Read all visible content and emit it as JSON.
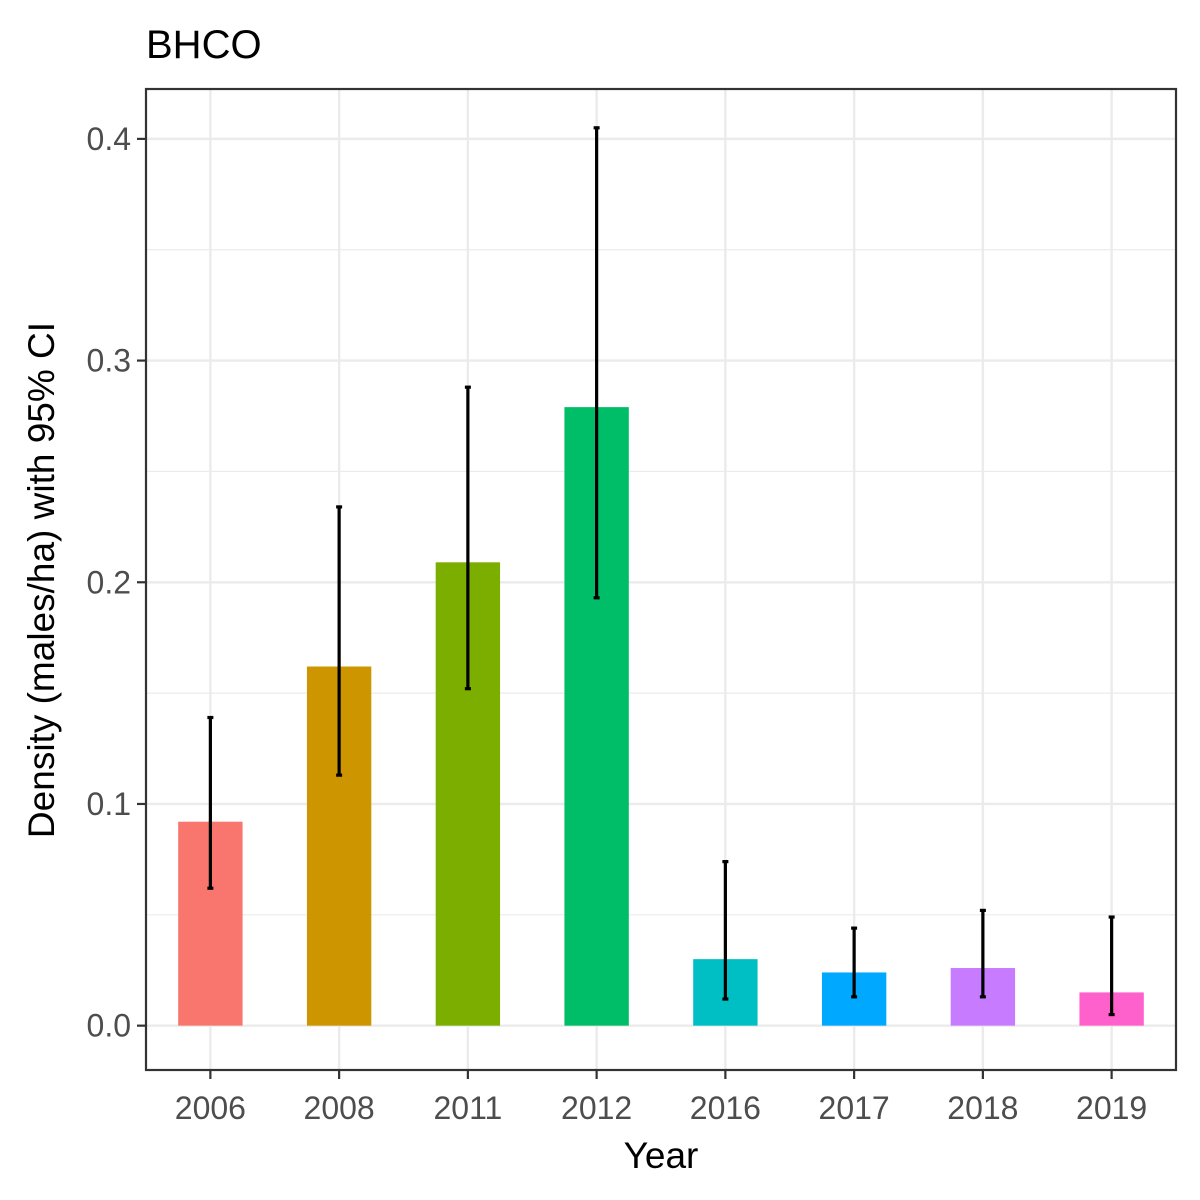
{
  "chart_data": {
    "type": "bar",
    "title": "BHCO",
    "xlabel": "Year",
    "ylabel": "Density (males/ha) with 95% CI",
    "categories": [
      "2006",
      "2008",
      "2011",
      "2012",
      "2016",
      "2017",
      "2018",
      "2019"
    ],
    "values": [
      0.092,
      0.162,
      0.209,
      0.279,
      0.03,
      0.024,
      0.026,
      0.015
    ],
    "ci_lower": [
      0.062,
      0.113,
      0.152,
      0.193,
      0.012,
      0.013,
      0.013,
      0.005
    ],
    "ci_upper": [
      0.139,
      0.234,
      0.288,
      0.405,
      0.074,
      0.044,
      0.052,
      0.049
    ],
    "bar_colors": [
      "#F8766D",
      "#CD9600",
      "#7CAE00",
      "#00BE67",
      "#00BFC4",
      "#00A9FF",
      "#C77CFF",
      "#FF61CC"
    ],
    "ylim": [
      -0.02,
      0.4225
    ],
    "y_ticks": [
      0.0,
      0.1,
      0.2,
      0.3,
      0.4
    ],
    "y_tick_labels": [
      "0.0",
      "0.1",
      "0.2",
      "0.3",
      "0.4"
    ],
    "grid": true,
    "legend": "none"
  }
}
